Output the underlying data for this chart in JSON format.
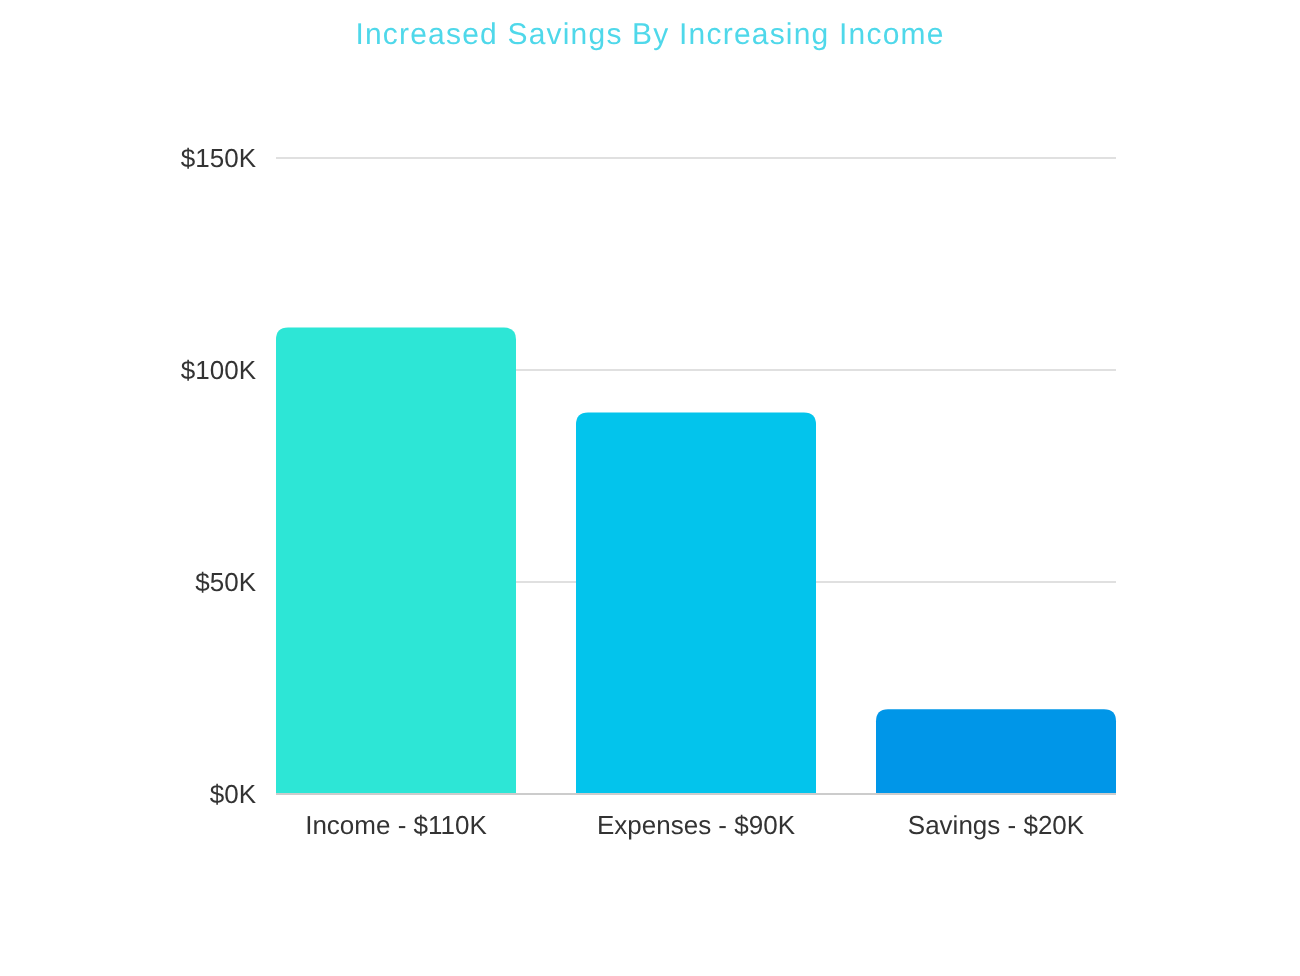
{
  "chart_data": {
    "type": "bar",
    "title": "Increased Savings By Increasing Income",
    "categories": [
      "Income - $110K",
      "Expenses - $90K",
      "Savings - $20K"
    ],
    "values": [
      110000,
      90000,
      20000
    ],
    "colors": [
      "#2de6d6",
      "#03c4ec",
      "#0096e8"
    ],
    "ylim": [
      0,
      150000
    ],
    "yticks": [
      {
        "value": 0,
        "label": "$0K"
      },
      {
        "value": 50000,
        "label": "$50K"
      },
      {
        "value": 100000,
        "label": "$100K"
      },
      {
        "value": 150000,
        "label": "$150K"
      }
    ],
    "grid": "y"
  }
}
